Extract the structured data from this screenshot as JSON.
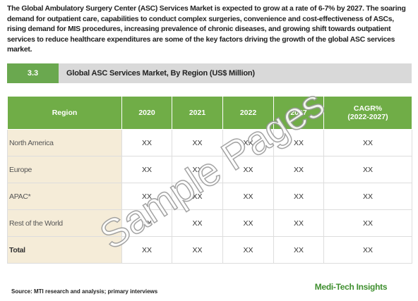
{
  "intro": "The Global Ambulatory Surgery Center (ASC) Services Market is expected to grow at a rate of 6-7% by 2027. The soaring demand for outpatient care, capabilities to conduct complex surgeries, convenience and cost-effectiveness of ASCs, rising demand for MIS procedures, increasing prevalence of chronic diseases, and growing shift towards outpatient services to reduce healthcare expenditures are some of the key factors driving the growth of the global ASC services market.",
  "table": {
    "number": "3.3",
    "title": "Global ASC Services Market, By Region (US$ Million)",
    "header": [
      "Region",
      "2020",
      "2021",
      "2022",
      "2027",
      [
        "CAGR%",
        "(2022-2027)"
      ]
    ],
    "rows": [
      [
        "North America",
        "XX",
        "XX",
        "XX",
        "XX",
        "XX"
      ],
      [
        "Europe",
        "XX",
        "XX",
        "XX",
        "XX",
        "XX"
      ],
      [
        "APAC*",
        "XX",
        "XX",
        "XX",
        "XX",
        "XX"
      ],
      [
        "Rest of the World",
        "XX",
        "XX",
        "XX",
        "XX",
        "XX"
      ],
      [
        "Total",
        "XX",
        "XX",
        "XX",
        "XX",
        "XX"
      ]
    ]
  },
  "watermark": "Sample Pages",
  "source": "Source: MTI research and analysis; primary interviews",
  "brand": "Medi-Tech Insights"
}
